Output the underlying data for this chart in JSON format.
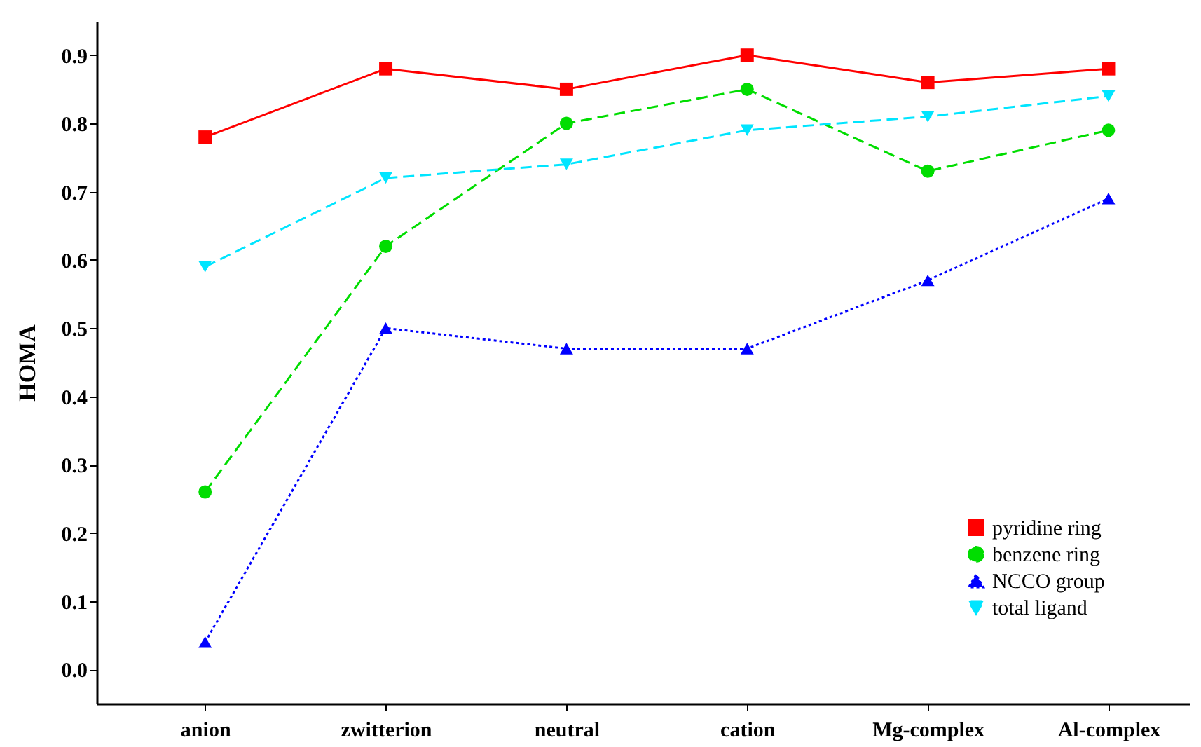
{
  "chart_data": {
    "type": "line",
    "ylabel": "HOMA",
    "categories": [
      "anion",
      "zwitterion",
      "neutral",
      "cation",
      "Mg-complex",
      "Al-complex"
    ],
    "series": [
      {
        "name": "pyridine ring",
        "color": "#ff0000",
        "marker": "square",
        "line_style": "solid",
        "values": [
          0.78,
          0.88,
          0.85,
          0.9,
          0.86,
          0.88
        ]
      },
      {
        "name": "benzene ring",
        "color": "#00dd00",
        "marker": "circle",
        "line_style": "dashed",
        "values": [
          0.26,
          0.62,
          0.8,
          0.85,
          0.73,
          0.79
        ]
      },
      {
        "name": "NCCO group",
        "color": "#0000ff",
        "marker": "triangle",
        "line_style": "dotted",
        "values": [
          0.04,
          0.5,
          0.47,
          0.47,
          0.57,
          0.69
        ]
      },
      {
        "name": "total ligand",
        "color": "#00e5ff",
        "marker": "triangle-down",
        "line_style": "dashed",
        "values": [
          0.59,
          0.72,
          0.74,
          0.79,
          0.81,
          0.84
        ]
      }
    ],
    "ylim": [
      -0.05,
      0.95
    ],
    "yticks": [
      {
        "value": 0,
        "label": "0.0"
      },
      0.1,
      0.2,
      0.3,
      0.4,
      0.5,
      0.6,
      0.7,
      0.8,
      0.9
    ],
    "grid": false,
    "legend": "bottom right"
  }
}
